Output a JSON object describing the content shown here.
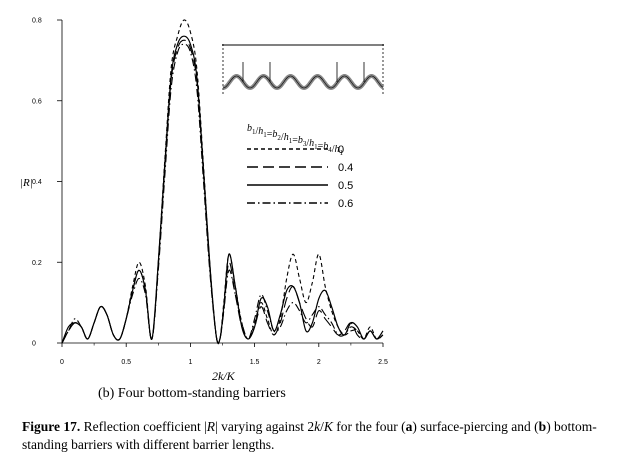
{
  "chart_data": {
    "type": "line",
    "title": "",
    "xlabel": "2k/K",
    "ylabel": "|R|",
    "xlim": [
      0,
      2.5
    ],
    "ylim": [
      0,
      0.8
    ],
    "xticks": [
      "0",
      "0.5",
      "1",
      "1.5",
      "2",
      "2.5"
    ],
    "yticks": [
      "0",
      "0.2",
      "0.4",
      "0.6",
      "0.8"
    ],
    "grid": false,
    "legend_title": "b1/h1=b2/h1=b3/h1=b4/h1",
    "legend_placement": "right",
    "series": [
      {
        "name": "0",
        "style": "short-dash",
        "x": [
          0,
          0.05,
          0.1,
          0.15,
          0.2,
          0.25,
          0.3,
          0.35,
          0.4,
          0.45,
          0.5,
          0.55,
          0.6,
          0.65,
          0.7,
          0.75,
          0.8,
          0.85,
          0.9,
          0.95,
          1.0,
          1.05,
          1.1,
          1.15,
          1.2,
          1.23,
          1.26,
          1.3,
          1.35,
          1.4,
          1.45,
          1.5,
          1.55,
          1.6,
          1.65,
          1.7,
          1.75,
          1.8,
          1.85,
          1.9,
          1.95,
          2.0,
          2.05,
          2.1,
          2.15,
          2.2,
          2.25,
          2.3,
          2.35,
          2.4,
          2.45,
          2.5
        ],
        "y": [
          0,
          0.03,
          0.05,
          0.04,
          0.01,
          0.05,
          0.09,
          0.07,
          0.02,
          0.01,
          0.06,
          0.14,
          0.2,
          0.14,
          0.01,
          0.2,
          0.45,
          0.68,
          0.76,
          0.8,
          0.77,
          0.68,
          0.45,
          0.2,
          0.02,
          0.01,
          0.1,
          0.22,
          0.14,
          0.05,
          0.01,
          0.05,
          0.1,
          0.06,
          0.02,
          0.06,
          0.16,
          0.22,
          0.16,
          0.1,
          0.15,
          0.22,
          0.14,
          0.08,
          0.04,
          0.02,
          0.03,
          0.03,
          0.01,
          0.04,
          0.01,
          0.02
        ]
      },
      {
        "name": "0.4",
        "style": "long-dash",
        "x": [
          0,
          0.05,
          0.1,
          0.15,
          0.2,
          0.25,
          0.3,
          0.35,
          0.4,
          0.45,
          0.5,
          0.55,
          0.6,
          0.65,
          0.7,
          0.75,
          0.8,
          0.85,
          0.9,
          0.95,
          1.0,
          1.05,
          1.1,
          1.15,
          1.2,
          1.23,
          1.26,
          1.3,
          1.35,
          1.4,
          1.45,
          1.5,
          1.55,
          1.6,
          1.65,
          1.7,
          1.75,
          1.8,
          1.85,
          1.9,
          1.95,
          2.0,
          2.05,
          2.1,
          2.15,
          2.2,
          2.25,
          2.3,
          2.35,
          2.4,
          2.45,
          2.5
        ],
        "y": [
          0,
          0.03,
          0.05,
          0.04,
          0.01,
          0.05,
          0.09,
          0.07,
          0.02,
          0.01,
          0.06,
          0.13,
          0.18,
          0.13,
          0.01,
          0.19,
          0.43,
          0.65,
          0.73,
          0.75,
          0.73,
          0.65,
          0.43,
          0.19,
          0.02,
          0.01,
          0.08,
          0.2,
          0.12,
          0.04,
          0.01,
          0.04,
          0.09,
          0.05,
          0.02,
          0.05,
          0.11,
          0.14,
          0.1,
          0.06,
          0.04,
          0.08,
          0.06,
          0.04,
          0.02,
          0.03,
          0.05,
          0.02,
          0.01,
          0.03,
          0.01,
          0.02
        ]
      },
      {
        "name": "0.5",
        "style": "solid",
        "x": [
          0,
          0.05,
          0.1,
          0.15,
          0.2,
          0.25,
          0.3,
          0.35,
          0.4,
          0.45,
          0.5,
          0.55,
          0.6,
          0.65,
          0.7,
          0.75,
          0.8,
          0.85,
          0.9,
          0.95,
          1.0,
          1.05,
          1.1,
          1.15,
          1.2,
          1.23,
          1.26,
          1.3,
          1.35,
          1.4,
          1.45,
          1.5,
          1.55,
          1.6,
          1.65,
          1.7,
          1.75,
          1.8,
          1.85,
          1.9,
          1.95,
          2.0,
          2.05,
          2.1,
          2.15,
          2.2,
          2.25,
          2.3,
          2.35,
          2.4,
          2.45,
          2.5
        ],
        "y": [
          0,
          0.04,
          0.05,
          0.04,
          0.01,
          0.05,
          0.09,
          0.07,
          0.02,
          0.01,
          0.06,
          0.13,
          0.18,
          0.13,
          0.01,
          0.2,
          0.44,
          0.66,
          0.74,
          0.76,
          0.74,
          0.66,
          0.44,
          0.2,
          0.02,
          0.01,
          0.09,
          0.22,
          0.14,
          0.04,
          0.01,
          0.04,
          0.11,
          0.09,
          0.03,
          0.07,
          0.13,
          0.14,
          0.1,
          0.03,
          0.05,
          0.11,
          0.13,
          0.09,
          0.04,
          0.02,
          0.05,
          0.04,
          0.01,
          0.03,
          0.01,
          0.03
        ]
      },
      {
        "name": "0.6",
        "style": "dash-dot",
        "x": [
          0,
          0.05,
          0.1,
          0.15,
          0.2,
          0.25,
          0.3,
          0.35,
          0.4,
          0.45,
          0.5,
          0.55,
          0.6,
          0.65,
          0.7,
          0.75,
          0.8,
          0.85,
          0.9,
          0.95,
          1.0,
          1.05,
          1.1,
          1.15,
          1.2,
          1.23,
          1.26,
          1.3,
          1.35,
          1.4,
          1.45,
          1.5,
          1.55,
          1.6,
          1.65,
          1.7,
          1.75,
          1.8,
          1.85,
          1.9,
          1.95,
          2.0,
          2.05,
          2.1,
          2.15,
          2.2,
          2.25,
          2.3,
          2.35,
          2.4,
          2.45,
          2.5
        ],
        "y": [
          0,
          0.03,
          0.06,
          0.04,
          0.01,
          0.05,
          0.09,
          0.07,
          0.02,
          0.01,
          0.06,
          0.12,
          0.16,
          0.12,
          0.01,
          0.18,
          0.41,
          0.63,
          0.72,
          0.74,
          0.72,
          0.63,
          0.41,
          0.18,
          0.02,
          0.01,
          0.08,
          0.18,
          0.12,
          0.05,
          0.01,
          0.06,
          0.12,
          0.08,
          0.03,
          0.04,
          0.08,
          0.1,
          0.08,
          0.05,
          0.07,
          0.09,
          0.07,
          0.05,
          0.02,
          0.02,
          0.04,
          0.03,
          0.01,
          0.03,
          0.01,
          0.02
        ]
      }
    ]
  },
  "legend": {
    "title_parts": [
      {
        "var": "b",
        "sub": "1"
      },
      {
        "sep": "/"
      },
      {
        "var": "h",
        "sub": "1"
      },
      {
        "sep": "="
      },
      {
        "var": "b",
        "sub": "2"
      },
      {
        "sep": "/"
      },
      {
        "var": "h",
        "sub": "1"
      },
      {
        "sep": "="
      },
      {
        "var": "b",
        "sub": "3"
      },
      {
        "sep": "/"
      },
      {
        "var": "h",
        "sub": "1"
      },
      {
        "sep": "="
      },
      {
        "var": "b",
        "sub": "4"
      },
      {
        "sep": "/"
      },
      {
        "var": "h",
        "sub": "1"
      }
    ]
  },
  "subcaption": "(b) Four bottom-standing barriers",
  "caption": {
    "label": "Figure 17.",
    "text_1": " Reflection coefficient |",
    "R": "R",
    "text_2": "| varying against 2",
    "k": "k",
    "slash": "/",
    "K": "K",
    "text_3": " for the four (",
    "a": "a",
    "text_4": ") surface-piercing and (",
    "b": "b",
    "text_5": ") bottom-standing barriers with different barrier lengths."
  },
  "colors": {
    "line": "#000000",
    "inset_fill": "#888888"
  }
}
